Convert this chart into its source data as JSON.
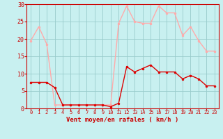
{
  "x": [
    0,
    1,
    2,
    3,
    4,
    5,
    6,
    7,
    8,
    9,
    10,
    11,
    12,
    13,
    14,
    15,
    16,
    17,
    18,
    19,
    20,
    21,
    22,
    23
  ],
  "y_mean": [
    7.5,
    7.5,
    7.5,
    6.0,
    1.0,
    1.0,
    1.0,
    1.0,
    1.0,
    1.0,
    0.5,
    1.5,
    12.0,
    10.5,
    11.5,
    12.5,
    10.5,
    10.5,
    10.5,
    8.5,
    9.5,
    8.5,
    6.5,
    6.5
  ],
  "y_gust": [
    19.5,
    23.5,
    18.5,
    1.0,
    1.0,
    1.0,
    1.0,
    1.0,
    1.0,
    1.0,
    1.0,
    24.5,
    29.5,
    25.0,
    24.5,
    24.5,
    29.5,
    27.5,
    27.5,
    21.0,
    23.5,
    19.5,
    16.5,
    16.5
  ],
  "color_mean": "#dd0000",
  "color_gust": "#ffaaaa",
  "bg_color": "#c8f0f0",
  "grid_color": "#99cccc",
  "xlabel": "Vent moyen/en rafales ( km/h )",
  "xlabel_color": "#cc0000",
  "tick_color": "#cc0000",
  "spine_color": "#cc0000",
  "ylim": [
    0,
    30
  ],
  "yticks": [
    0,
    5,
    10,
    15,
    20,
    25,
    30
  ],
  "xlim": [
    -0.5,
    23.5
  ]
}
